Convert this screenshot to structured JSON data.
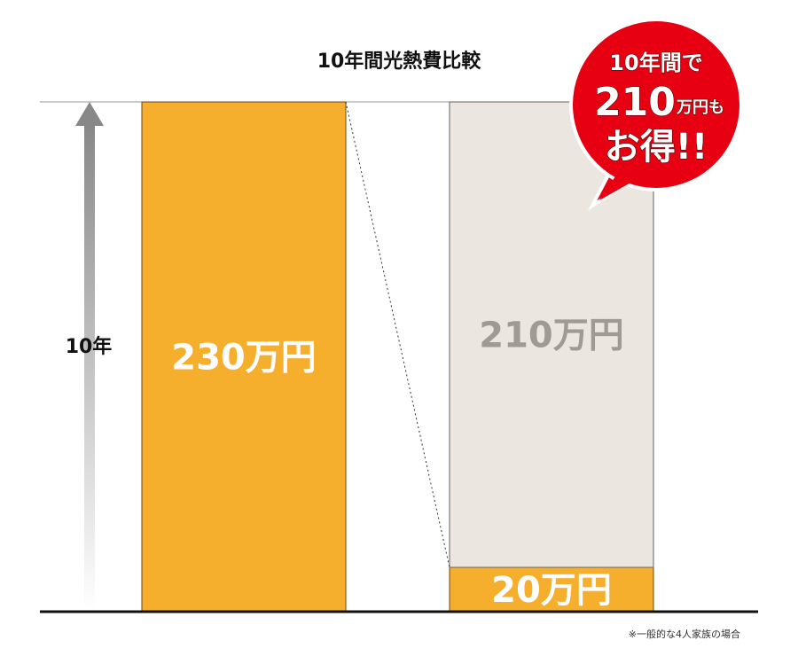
{
  "chart_data": {
    "type": "bar",
    "stacked": true,
    "title": "10年間光熱費比較",
    "ylabel": "10年",
    "categories": [
      null,
      null
    ],
    "series": [
      {
        "color": "#f6ae2d",
        "values": [
          230,
          20
        ],
        "value_labels": [
          "230万円",
          "20万円"
        ]
      },
      {
        "color": "#ebe6df",
        "values": [
          null,
          210
        ],
        "value_labels": [
          null,
          "210万円"
        ]
      }
    ],
    "ylim": [
      0,
      230
    ],
    "badge": {
      "line1": "10年間で",
      "number": "210",
      "unit": "万円も",
      "line3": "お得!!"
    },
    "note": "※一般的な4人家族の場合"
  }
}
